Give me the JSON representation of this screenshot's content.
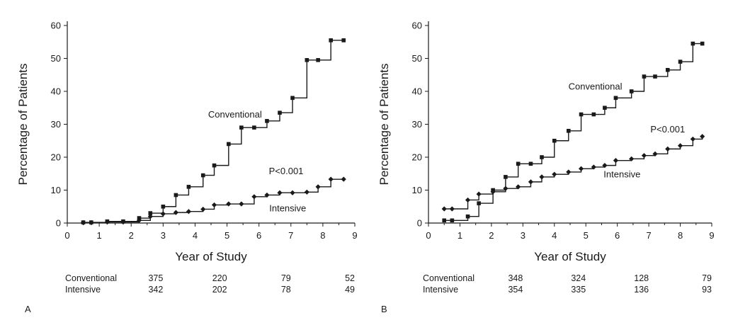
{
  "chart_data": [
    {
      "type": "line",
      "panel_label": "A",
      "xlabel": "Year of Study",
      "ylabel": "Percentage of Patients",
      "xlim": [
        0,
        9
      ],
      "ylim": [
        0,
        62
      ],
      "x_ticks": [
        "0",
        "1",
        "2",
        "3",
        "4",
        "5",
        "6",
        "7",
        "8",
        "9"
      ],
      "y_ticks": [
        "0",
        "10",
        "20",
        "30",
        "40",
        "50",
        "60"
      ],
      "grid": false,
      "step": true,
      "series": [
        {
          "name": "Conventional",
          "marker": "square",
          "x": [
            0.5,
            0.75,
            1.25,
            1.75,
            2.25,
            2.6,
            3.0,
            3.4,
            3.8,
            4.25,
            4.6,
            5.05,
            5.45,
            5.85,
            6.25,
            6.65,
            7.05,
            7.5,
            7.85,
            8.25,
            8.65
          ],
          "y": [
            0.2,
            0.2,
            0.5,
            0.5,
            1.5,
            3.0,
            5.0,
            8.5,
            11.0,
            14.5,
            17.5,
            24.0,
            29.0,
            29.0,
            31.0,
            33.5,
            38.0,
            49.5,
            49.5,
            55.5,
            55.5
          ]
        },
        {
          "name": "Intensive",
          "marker": "diamond",
          "x": [
            0.5,
            0.75,
            1.25,
            1.75,
            2.25,
            2.6,
            3.0,
            3.4,
            3.8,
            4.25,
            4.6,
            5.05,
            5.45,
            5.85,
            6.25,
            6.65,
            7.05,
            7.5,
            7.85,
            8.25,
            8.65
          ],
          "y": [
            0.1,
            0.1,
            0.3,
            0.3,
            0.8,
            2.0,
            2.8,
            3.2,
            3.5,
            4.2,
            5.5,
            5.8,
            5.8,
            8.0,
            8.5,
            9.2,
            9.2,
            9.4,
            11.0,
            13.3,
            13.3
          ]
        }
      ],
      "annotations": [
        {
          "text": "Conventional",
          "x": 5.25,
          "y": 33.0
        },
        {
          "text": "P<0.001",
          "x": 6.85,
          "y": 15.8
        },
        {
          "text": "Intensive",
          "x": 6.9,
          "y": 4.5
        }
      ],
      "risk_table": {
        "x": [
          3,
          5,
          7,
          9
        ],
        "rows": [
          {
            "label": "Conventional",
            "values": [
              "375",
              "220",
              "79",
              "52"
            ]
          },
          {
            "label": "Intensive",
            "values": [
              "342",
              "202",
              "78",
              "49"
            ]
          }
        ]
      }
    },
    {
      "type": "line",
      "panel_label": "B",
      "xlabel": "Year of Study",
      "ylabel": "Percentage of Patients",
      "xlim": [
        0,
        9
      ],
      "ylim": [
        0,
        62
      ],
      "x_ticks": [
        "0",
        "1",
        "2",
        "3",
        "4",
        "5",
        "6",
        "7",
        "8",
        "9"
      ],
      "y_ticks": [
        "0",
        "10",
        "20",
        "30",
        "40",
        "50",
        "60"
      ],
      "grid": false,
      "step": true,
      "series": [
        {
          "name": "Conventional",
          "marker": "square",
          "x": [
            0.5,
            0.75,
            1.25,
            1.6,
            2.05,
            2.45,
            2.85,
            3.25,
            3.6,
            4.0,
            4.45,
            4.85,
            5.25,
            5.6,
            5.95,
            6.45,
            6.85,
            7.2,
            7.6,
            8.0,
            8.4,
            8.7
          ],
          "y": [
            0.8,
            0.8,
            2.0,
            6.0,
            10.0,
            14.0,
            18.0,
            18.0,
            20.0,
            25.0,
            28.0,
            33.0,
            33.0,
            35.0,
            38.0,
            40.0,
            44.5,
            44.5,
            46.5,
            49.0,
            54.5,
            54.5
          ]
        },
        {
          "name": "Intensive",
          "marker": "diamond",
          "x": [
            0.5,
            0.75,
            1.25,
            1.6,
            2.05,
            2.45,
            2.85,
            3.25,
            3.6,
            4.0,
            4.45,
            4.85,
            5.25,
            5.6,
            5.95,
            6.45,
            6.85,
            7.2,
            7.6,
            8.0,
            8.4,
            8.7
          ],
          "y": [
            4.3,
            4.3,
            7.0,
            8.8,
            9.5,
            10.5,
            11.0,
            12.5,
            14.0,
            14.8,
            15.5,
            16.5,
            17.0,
            17.5,
            19.0,
            19.5,
            20.5,
            21.0,
            22.5,
            23.5,
            25.5,
            26.3
          ]
        }
      ],
      "annotations": [
        {
          "text": "Conventional",
          "x": 5.3,
          "y": 41.5
        },
        {
          "text": "P<0.001",
          "x": 7.6,
          "y": 28.5
        },
        {
          "text": "Intensive",
          "x": 6.15,
          "y": 14.8
        }
      ],
      "risk_table": {
        "x": [
          3,
          5,
          7,
          9
        ],
        "rows": [
          {
            "label": "Conventional",
            "values": [
              "348",
              "324",
              "128",
              "79"
            ]
          },
          {
            "label": "Intensive",
            "values": [
              "354",
              "335",
              "136",
              "93"
            ]
          }
        ]
      }
    }
  ]
}
